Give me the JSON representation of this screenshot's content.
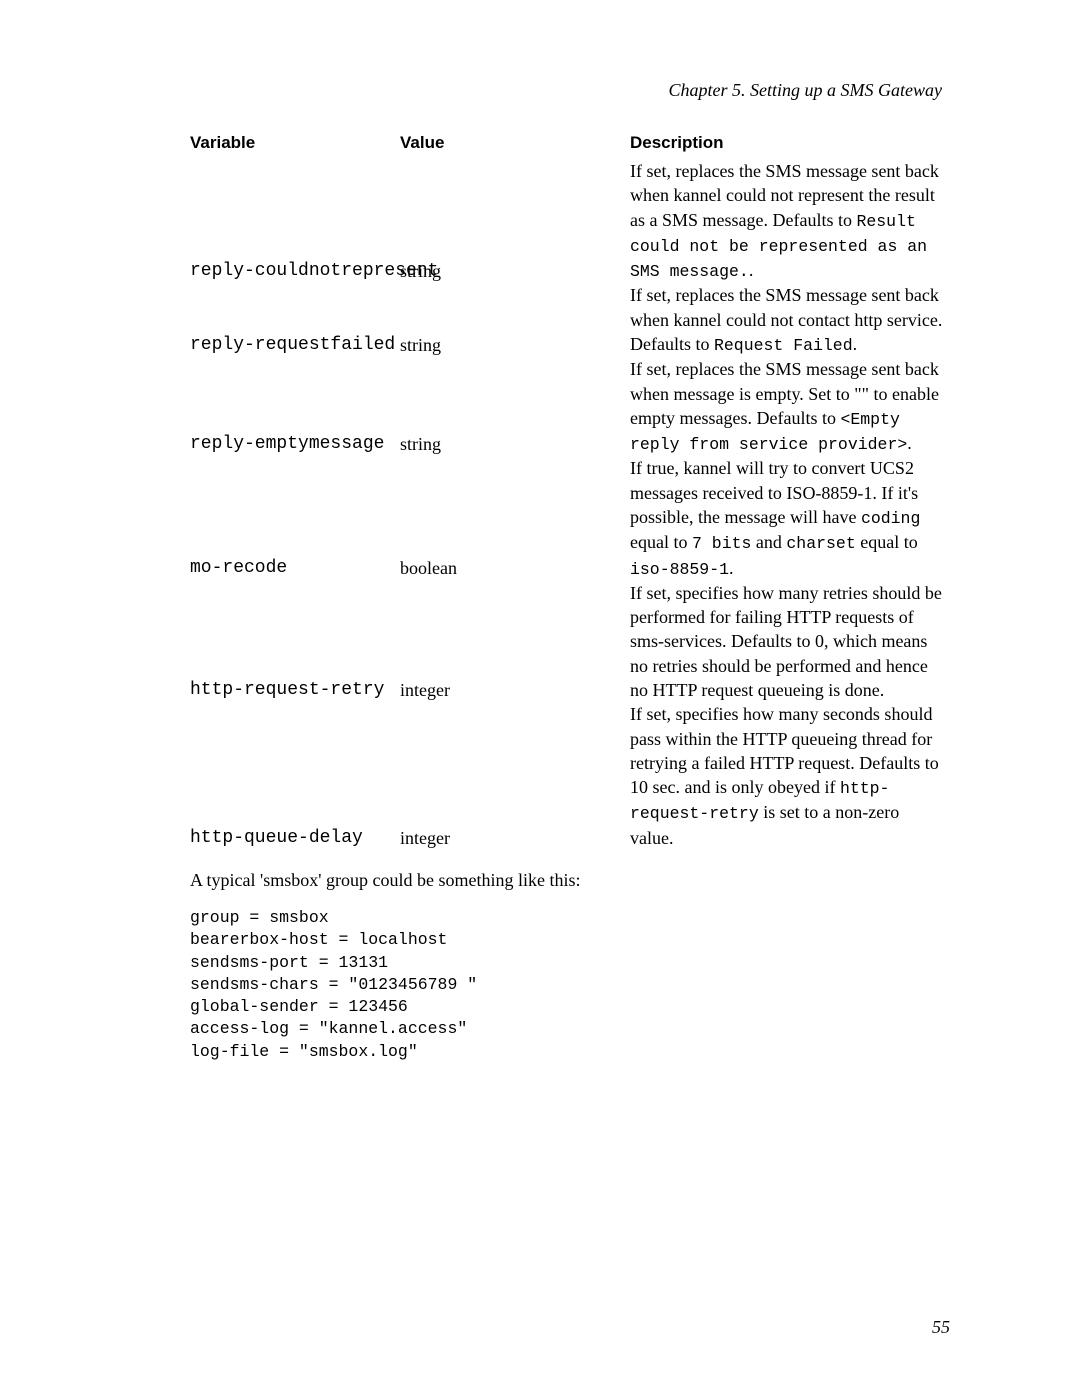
{
  "chapter_header": "Chapter 5. Setting up a SMS Gateway",
  "page_number": "55",
  "columns": {
    "variable": "Variable",
    "value": "Value",
    "description": "Description"
  },
  "rows": [
    {
      "variable": "reply-couldnotrepresent",
      "value": "string",
      "desc_pre": " If set, replaces the SMS message sent back when kannel could not represent the result as a SMS message. Defaults to ",
      "code1": "Result could not be represented as an SMS message.",
      "desc_mid": ".",
      "code2": "",
      "desc_post": ""
    },
    {
      "variable": "reply-requestfailed",
      "value": "string",
      "desc_pre": " If set, replaces the SMS message sent back when kannel could not contact http service. Defaults to ",
      "code1": "Request Failed",
      "desc_mid": ".",
      "code2": "",
      "desc_post": ""
    },
    {
      "variable": "reply-emptymessage",
      "value": "string",
      "desc_pre": " If set, replaces the SMS message sent back when message is empty. Set to \"\" to enable empty messages. Defaults to ",
      "code1": "<Empty reply from service provider>",
      "desc_mid": ".",
      "code2": "",
      "desc_post": ""
    },
    {
      "variable": "mo-recode",
      "value": "boolean",
      "desc_pre": " If true, kannel will try to convert UCS2 messages received to ISO-8859-1. If it's possible, the message will have ",
      "code1": "coding",
      "desc_mid": " equal to ",
      "code2": "7 bits",
      "desc_post_a": " and ",
      "code3": "charset",
      "desc_post_b": " equal to ",
      "code4": "iso-8859-1",
      "desc_post_c": "."
    },
    {
      "variable": "http-request-retry",
      "value": "integer",
      "desc_pre": " If set, specifies how many retries should be performed for failing HTTP requests of sms-services. Defaults to 0, which means no retries should be performed and hence no HTTP request queueing is done.",
      "code1": "",
      "desc_mid": "",
      "code2": "",
      "desc_post": ""
    },
    {
      "variable": "http-queue-delay",
      "value": "integer",
      "desc_pre": " If set, specifies how many seconds should pass within the HTTP queueing thread for retrying a failed HTTP request. Defaults to 10 sec. and is only obeyed if ",
      "code1": "http-request-retry",
      "desc_mid": " is set to a non-zero value.",
      "code2": "",
      "desc_post": ""
    }
  ],
  "after_table_text": "A typical 'smsbox' group could be something like this:",
  "config_block": "group = smsbox\nbearerbox-host = localhost\nsendsms-port = 13131\nsendsms-chars = \"0123456789 \"\nglobal-sender = 123456\naccess-log = \"kannel.access\"\nlog-file = \"smsbox.log\""
}
